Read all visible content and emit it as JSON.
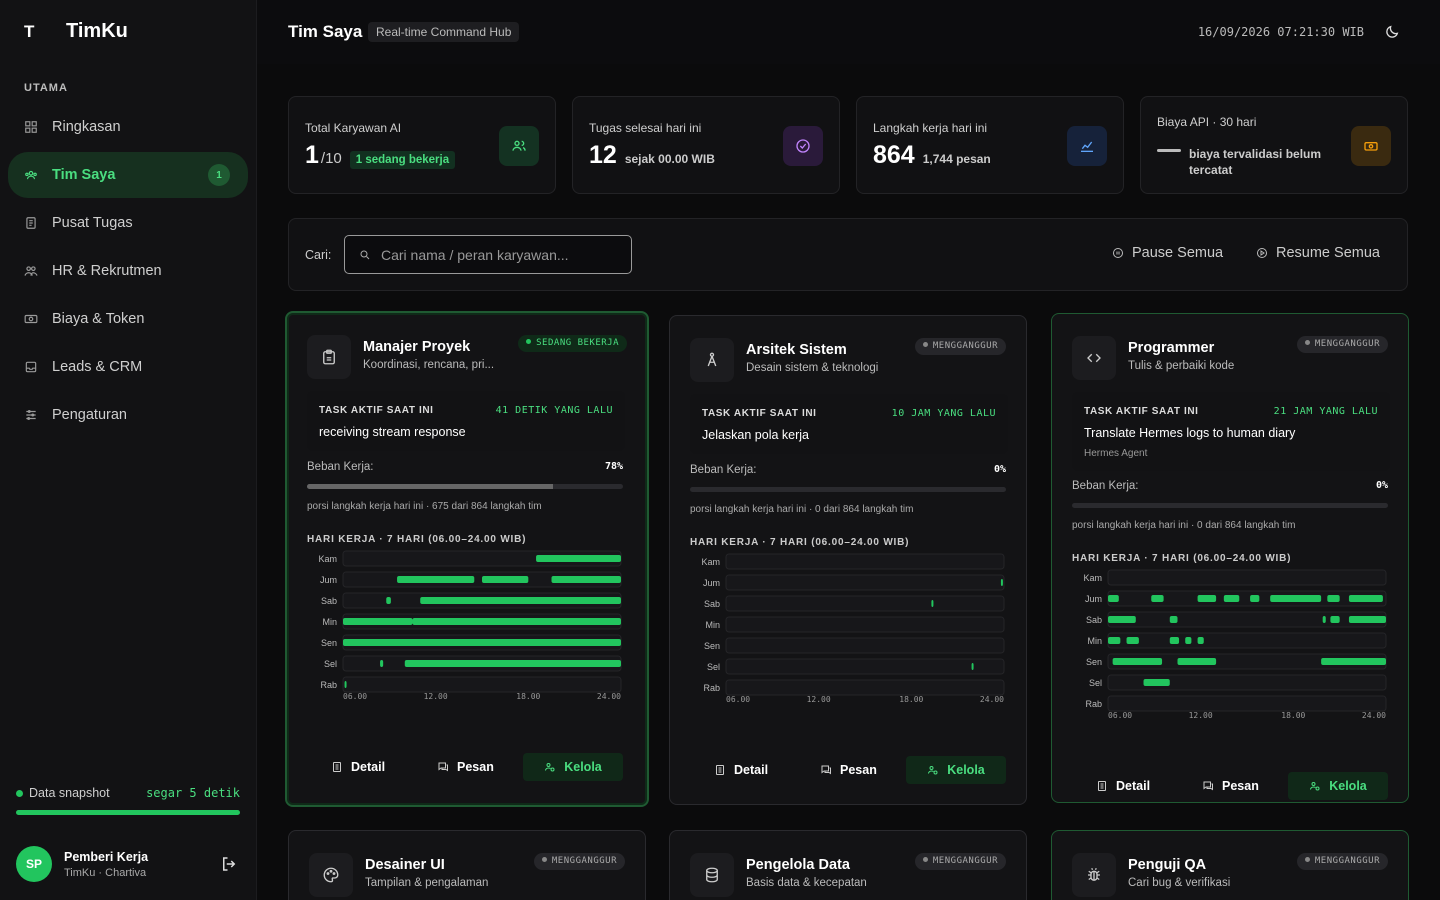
{
  "sidebar": {
    "logo": "T",
    "brand": "TimKu",
    "section": "UTAMA",
    "items": [
      {
        "label": "Ringkasan",
        "icon": "dashboard-icon"
      },
      {
        "label": "Tim Saya",
        "icon": "team-icon",
        "badge": "1",
        "active": true
      },
      {
        "label": "Pusat Tugas",
        "icon": "tasks-icon"
      },
      {
        "label": "HR & Rekrutmen",
        "icon": "people-icon"
      },
      {
        "label": "Biaya & Token",
        "icon": "money-icon"
      },
      {
        "label": "Leads & CRM",
        "icon": "inbox-icon"
      },
      {
        "label": "Pengaturan",
        "icon": "sliders-icon"
      }
    ],
    "snapshot_label": "Data snapshot",
    "snapshot_fresh": "segar 5 detik",
    "snapshot_progress": 1.0,
    "user": {
      "initials": "SP",
      "name": "Pemberi Kerja",
      "org": "TimKu · Chartiva"
    }
  },
  "header": {
    "title": "Tim Saya",
    "tag": "Real-time Command Hub",
    "clock": "16/09/2026 07:21:30 WIB"
  },
  "stats": [
    {
      "label": "Total Karyawan AI",
      "value": "1",
      "denominator": "/10",
      "pill": "1 sedang bekerja",
      "icon": "users-icon",
      "accent": "#4ade80",
      "icon_bg": "#143222"
    },
    {
      "label": "Tugas selesai hari ini",
      "value": "12",
      "sub": "sejak 00.00 WIB",
      "icon": "check-circle-icon",
      "accent": "#a855f7",
      "icon_bg": "#2a1a3a"
    },
    {
      "label": "Langkah kerja hari ini",
      "value": "864",
      "sub": "1,744 pesan",
      "icon": "activity-icon",
      "accent": "#3b82f6",
      "icon_bg": "#16223a"
    },
    {
      "label": "Biaya API · 30 hari",
      "sub": "biaya tervalidasi belum tercatat",
      "icon": "banknote-icon",
      "accent": "#f59e0b",
      "icon_bg": "#3a2a10"
    }
  ],
  "controls": {
    "search_label": "Cari:",
    "search_placeholder": "Cari nama / peran karyawan...",
    "pause": "Pause Semua",
    "resume": "Resume Semua"
  },
  "labels": {
    "task_active": "TASK AKTIF SAAT INI",
    "workload": "Beban Kerja:",
    "schedule": "HARI KERJA · 7 HARI (06.00–24.00 WIB)",
    "detail": "Detail",
    "message": "Pesan",
    "manage": "Kelola",
    "days": [
      "Kam",
      "Jum",
      "Sab",
      "Min",
      "Sen",
      "Sel",
      "Rab"
    ],
    "hours": [
      "06.00",
      "12.00",
      "18.00",
      "24.00"
    ]
  },
  "colors": {
    "accent": "#22c55e",
    "accent_text": "#4ade80"
  },
  "cards": [
    {
      "title": "Manajer Proyek",
      "subtitle": "Koordinasi, rencana, pri...",
      "status": "SEDANG BEKERJA",
      "active": true,
      "icon": "clipboard-icon",
      "task_ago": "41 DETIK YANG LALU",
      "task": "receiving stream response",
      "agent": "",
      "workload": "78%",
      "workload_fraction": 0.78,
      "share": "porsi langkah kerja hari ini · 675 dari 864 langkah tim",
      "activity": [
        [
          [
            18.5,
            24
          ]
        ],
        [
          [
            9.5,
            14.5
          ],
          [
            15,
            18
          ],
          [
            19.5,
            24
          ]
        ],
        [
          [
            8.8,
            9.1
          ],
          [
            11,
            24
          ]
        ],
        [
          [
            6,
            10.5
          ],
          [
            10.5,
            24
          ]
        ],
        [
          [
            6,
            24
          ]
        ],
        [
          [
            8.4,
            8.6
          ],
          [
            10,
            24
          ]
        ],
        [
          [
            6.1,
            6.2
          ]
        ]
      ]
    },
    {
      "title": "Arsitek Sistem",
      "subtitle": "Desain sistem & teknologi",
      "status": "MENGGANGGUR",
      "active": false,
      "icon": "compass-icon",
      "task_ago": "10 JAM YANG LALU",
      "task": "Jelaskan pola kerja",
      "agent": "",
      "workload": "0%",
      "workload_fraction": 0.0,
      "share": "porsi langkah kerja hari ini · 0 dari 864 langkah tim",
      "activity": [
        [],
        [
          [
            23.8,
            23.9
          ]
        ],
        [
          [
            19.3,
            19.4
          ]
        ],
        [],
        [],
        [
          [
            21.9,
            22
          ]
        ],
        []
      ]
    },
    {
      "title": "Programmer",
      "subtitle": "Tulis & perbaiki kode",
      "status": "MENGGANGGUR",
      "active": false,
      "icon": "code-icon",
      "task_ago": "21 JAM YANG LALU",
      "task": "Translate Hermes logs to human diary",
      "agent": "Hermes Agent",
      "workload": "0%",
      "workload_fraction": 0.0,
      "share": "porsi langkah kerja hari ini · 0 dari 864 langkah tim",
      "activity": [
        [],
        [
          [
            6,
            6.7
          ],
          [
            8.8,
            9.6
          ],
          [
            11.8,
            13
          ],
          [
            13.5,
            14.5
          ],
          [
            15.2,
            15.8
          ],
          [
            16.5,
            19.8
          ],
          [
            20.2,
            21
          ],
          [
            21.6,
            23.8
          ]
        ],
        [
          [
            6,
            7.8
          ],
          [
            10,
            10.5
          ],
          [
            19.9,
            20.1
          ],
          [
            20.4,
            21
          ],
          [
            21.6,
            24
          ]
        ],
        [
          [
            6,
            6.8
          ],
          [
            7.2,
            8
          ],
          [
            10,
            10.6
          ],
          [
            11,
            11.4
          ],
          [
            11.8,
            12.2
          ]
        ],
        [
          [
            6.3,
            9.5
          ],
          [
            10.5,
            13
          ],
          [
            19.8,
            24
          ]
        ],
        [
          [
            8.3,
            10
          ]
        ],
        []
      ]
    }
  ],
  "cards_row2": [
    {
      "title": "Desainer UI",
      "subtitle": "Tampilan & pengalaman",
      "status": "MENGGANGGUR",
      "icon": "palette-icon"
    },
    {
      "title": "Pengelola Data",
      "subtitle": "Basis data & kecepatan",
      "status": "MENGGANGGUR",
      "icon": "database-icon"
    },
    {
      "title": "Penguji QA",
      "subtitle": "Cari bug & verifikasi",
      "status": "MENGGANGGUR",
      "icon": "bug-icon"
    }
  ]
}
